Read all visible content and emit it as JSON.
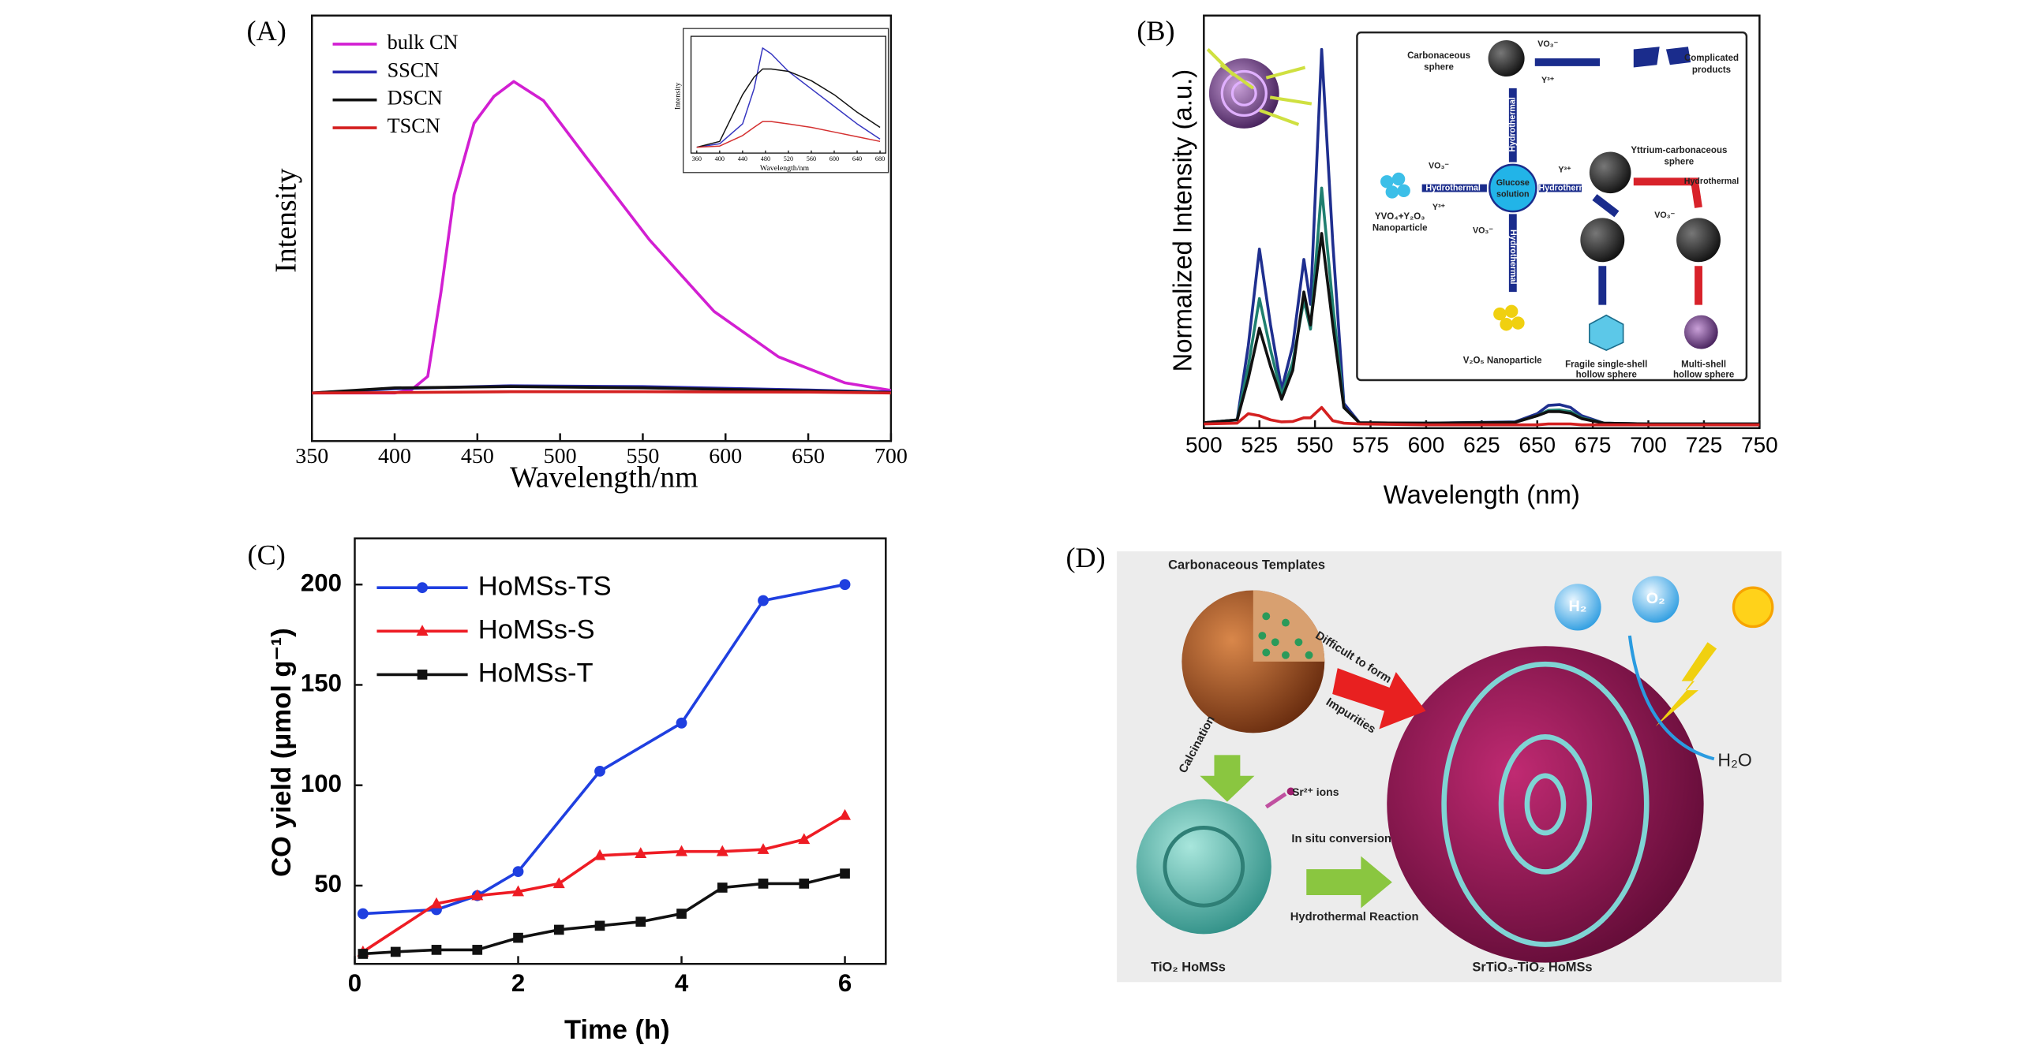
{
  "chart_data": [
    {
      "type": "line",
      "label": "(A)",
      "x_label": "Wavelength/nm",
      "y_label": "Intensity",
      "xlim": [
        350,
        700
      ],
      "xticks": [
        350,
        400,
        450,
        500,
        550,
        600,
        650,
        700
      ],
      "ylim": [
        0,
        100
      ],
      "series": [
        {
          "name": "bulk CN",
          "color": "#d21fd2",
          "x": [
            350,
            400,
            410,
            420,
            428,
            436,
            448,
            460,
            472,
            490,
            515,
            554,
            593,
            632,
            672,
            700
          ],
          "values": [
            11.3,
            11.3,
            12,
            15.2,
            35,
            57.9,
            74.7,
            81,
            84.5,
            80,
            67.1,
            47.3,
            30.5,
            19.8,
            13.7,
            11.9
          ]
        },
        {
          "name": "SSCN",
          "color": "#2b2bb0",
          "x": [
            350,
            400,
            470,
            550,
            650,
            700
          ],
          "values": [
            11.3,
            12.3,
            13,
            12.8,
            12,
            11.5
          ]
        },
        {
          "name": "DSCN",
          "color": "#111111",
          "x": [
            350,
            400,
            470,
            550,
            650,
            700
          ],
          "values": [
            11.3,
            12.5,
            12.8,
            12.5,
            11.8,
            11.4
          ]
        },
        {
          "name": "TSCN",
          "color": "#d42020",
          "x": [
            350,
            400,
            470,
            550,
            650,
            700
          ],
          "values": [
            11.3,
            11.4,
            11.6,
            11.6,
            11.5,
            11.3
          ]
        }
      ]
    },
    {
      "type": "line",
      "x_label": "Wavelength/nm",
      "y_label": "Intensity",
      "xlim": [
        350,
        690
      ],
      "xticks": [
        360,
        400,
        440,
        480,
        520,
        560,
        600,
        640,
        680
      ],
      "ylim": [
        0,
        100
      ],
      "series": [
        {
          "color": "#3535c0",
          "x": [
            360,
            400,
            440,
            460,
            475,
            490,
            520,
            560,
            600,
            640,
            680
          ],
          "values": [
            5,
            8,
            25,
            55,
            90,
            85,
            70,
            55,
            40,
            25,
            12
          ]
        },
        {
          "color": "#111111",
          "x": [
            360,
            400,
            440,
            460,
            475,
            490,
            520,
            560,
            600,
            640,
            680
          ],
          "values": [
            5,
            10,
            50,
            65,
            72,
            72,
            70,
            62,
            50,
            35,
            22
          ]
        },
        {
          "color": "#d43030",
          "x": [
            360,
            400,
            440,
            460,
            475,
            490,
            520,
            560,
            600,
            640,
            680
          ],
          "values": [
            5,
            6,
            15,
            22,
            27,
            27,
            25,
            22,
            18,
            14,
            10
          ]
        }
      ]
    },
    {
      "type": "line",
      "label": "(B)",
      "x_label": "Wavelength (nm)",
      "y_label": "Normalized Intensity (a.u.)",
      "xlim": [
        500,
        750
      ],
      "xticks": [
        500,
        525,
        550,
        575,
        600,
        625,
        650,
        675,
        700,
        725,
        750
      ],
      "ylim": [
        0,
        100
      ],
      "x": [
        500,
        515,
        520,
        525,
        530,
        535,
        540,
        545,
        548,
        553,
        558,
        563,
        570,
        600,
        640,
        650,
        655,
        660,
        665,
        670,
        680,
        700,
        750
      ],
      "series": [
        {
          "color": "#1f2f8f",
          "values": [
            1.3,
            2,
            20,
            43.4,
            25,
            9.4,
            20,
            40.9,
            30,
            91.8,
            45,
            6,
            1.3,
            1.2,
            1.5,
            3.5,
            5.5,
            5.7,
            5,
            3,
            1.2,
            1,
            1
          ]
        },
        {
          "color": "#1f7f6f",
          "values": [
            1.3,
            2,
            15,
            31.4,
            19,
            8,
            16,
            31,
            24,
            58.2,
            30,
            5,
            1.3,
            1.2,
            1.4,
            3,
            4.3,
            4.4,
            4,
            2.5,
            1.2,
            1,
            1
          ]
        },
        {
          "color": "#111111",
          "values": [
            1.3,
            2,
            12,
            24.2,
            15,
            7,
            14,
            33,
            25,
            47.2,
            25,
            5,
            1.3,
            1.2,
            1.4,
            3,
            4,
            4,
            3.6,
            2.3,
            1.2,
            1,
            1
          ]
        },
        {
          "color": "#d42020",
          "values": [
            1,
            1.2,
            3.5,
            3,
            2,
            1.5,
            1.6,
            2.5,
            2.5,
            5,
            1.8,
            1.2,
            1,
            0.8,
            0.8,
            0.8,
            1,
            1,
            1,
            0.8,
            0.8,
            0.8,
            0.8
          ]
        }
      ]
    },
    {
      "type": "line",
      "label": "(C)",
      "x_label": "Time (h)",
      "y_label": "CO yield (μmol g⁻¹)",
      "xlim": [
        0,
        6.5
      ],
      "xticks": [
        0,
        2,
        4,
        6
      ],
      "ylim": [
        11,
        223
      ],
      "yticks": [
        50,
        100,
        150,
        200
      ],
      "series": [
        {
          "name": "HoMSs-TS",
          "color": "#1f3fe0",
          "marker": "circle",
          "x": [
            0.1,
            1,
            1.5,
            2,
            3,
            4,
            5,
            6
          ],
          "values": [
            36,
            38,
            45,
            57,
            107,
            131,
            192,
            200
          ]
        },
        {
          "name": "HoMSs-S",
          "color": "#ee1c24",
          "marker": "triangle",
          "x": [
            0.1,
            1,
            1.5,
            2,
            2.5,
            3,
            3.5,
            4,
            4.5,
            5,
            5.5,
            6
          ],
          "values": [
            17,
            41,
            45,
            47,
            51,
            65,
            66,
            67,
            67,
            68,
            73,
            85
          ]
        },
        {
          "name": "HoMSs-T",
          "color": "#111111",
          "marker": "square",
          "x": [
            0.1,
            0.5,
            1,
            1.5,
            2,
            2.5,
            3,
            3.5,
            4,
            4.5,
            5,
            5.5,
            6
          ],
          "values": [
            16,
            17,
            18,
            18,
            24,
            28,
            30,
            32,
            36,
            49,
            51,
            51,
            56
          ]
        }
      ]
    }
  ],
  "scheme_b": {
    "labels": [
      "Carbonaceous",
      "sphere",
      "VO₃⁻",
      "Y³⁺",
      "Complicated",
      "products",
      "Hydrothermal",
      "YVO₄+Y₂O₃",
      "Nanoparticle",
      "VO₃⁻",
      "Y³⁺",
      "Hydrothermal",
      "Glucose",
      "solution",
      "Hydrothermal",
      "Y³⁺",
      "Yttrium-carbonaceous",
      "sphere",
      "Hydrothermal",
      "VO₃⁻",
      "VO₃⁻",
      "Hydrothermal",
      "V₂O₅ Nanoparticle",
      "Fragile single-shell",
      "hollow sphere",
      "Multi-shell",
      "hollow sphere"
    ]
  },
  "scheme_d": {
    "label": "(D)",
    "labels": [
      "Carbonaceous Templates",
      "Difficult to form",
      "Impurities",
      "Calcination",
      "Sr²⁺ ions",
      "In situ conversion",
      "Hydrothermal Reaction",
      "TiO₂ HoMSs",
      "SrTiO₃-TiO₂ HoMSs",
      "H₂",
      "O₂",
      "H₂O"
    ]
  }
}
